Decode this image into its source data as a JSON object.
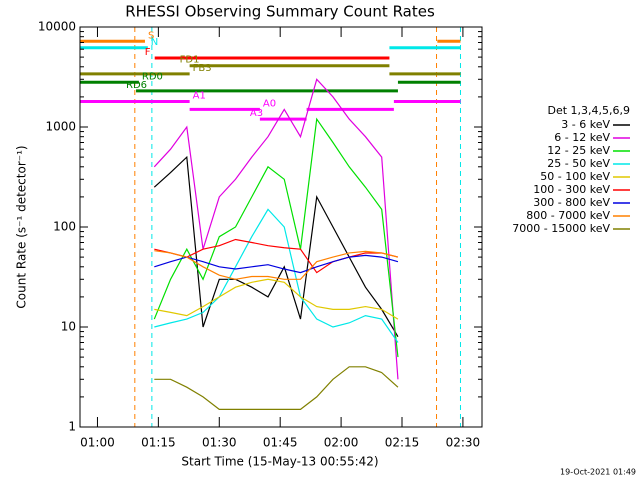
{
  "chart_data": {
    "type": "line",
    "title": "RHESSI Observing Summary Count Rates",
    "x_label": "Start Time (15-May-13 00:55:42)",
    "y_label": "Count Rate (s⁻¹ detector⁻¹)",
    "legend_title": "Det 1,3,4,5,6,9",
    "footer": "19-Oct-2021 01:49",
    "log_y": true,
    "xlim": [
      55.7,
      154.7
    ],
    "ylim": [
      1,
      10000
    ],
    "xticks": [
      {
        "value": 60,
        "label": "01:00"
      },
      {
        "value": 75,
        "label": "01:15"
      },
      {
        "value": 90,
        "label": "01:30"
      },
      {
        "value": 105,
        "label": "01:45"
      },
      {
        "value": 120,
        "label": "02:00"
      },
      {
        "value": 135,
        "label": "02:15"
      },
      {
        "value": 150,
        "label": "02:30"
      }
    ],
    "yticks": [
      1,
      10,
      100,
      1000,
      10000
    ],
    "x": [
      74,
      78,
      82,
      86,
      90,
      94,
      98,
      102,
      106,
      110,
      114,
      118,
      122,
      126,
      130,
      134
    ],
    "series": [
      {
        "name": "3 - 6 keV",
        "color": "#000000",
        "values": [
          250,
          350,
          500,
          10,
          30,
          30,
          25,
          20,
          40,
          12,
          200,
          100,
          50,
          25,
          15,
          8
        ]
      },
      {
        "name": "6 - 12 keV",
        "color": "#e000e0",
        "values": [
          400,
          600,
          1000,
          60,
          200,
          300,
          500,
          800,
          1500,
          800,
          3000,
          2000,
          1200,
          800,
          500,
          3
        ]
      },
      {
        "name": "12 - 25 keV",
        "color": "#00e000",
        "values": [
          12,
          30,
          60,
          30,
          80,
          100,
          200,
          400,
          300,
          60,
          1200,
          700,
          400,
          250,
          150,
          5
        ]
      },
      {
        "name": "25 - 50 keV",
        "color": "#00e8e8",
        "values": [
          10,
          11,
          12,
          14,
          20,
          40,
          80,
          150,
          100,
          20,
          12,
          10,
          11,
          13,
          12,
          7
        ]
      },
      {
        "name": "50 - 100 keV",
        "color": "#e0c800",
        "values": [
          15,
          14,
          13,
          16,
          20,
          25,
          28,
          30,
          28,
          20,
          16,
          15,
          15,
          16,
          15,
          12
        ]
      },
      {
        "name": "100 - 300 keV",
        "color": "#ff0000",
        "values": [
          60,
          55,
          50,
          60,
          65,
          75,
          70,
          65,
          62,
          60,
          35,
          45,
          50,
          55,
          55,
          50
        ]
      },
      {
        "name": "300 - 800 keV",
        "color": "#0000e0",
        "values": [
          40,
          45,
          50,
          45,
          40,
          38,
          40,
          42,
          38,
          35,
          40,
          45,
          50,
          52,
          50,
          45
        ]
      },
      {
        "name": "800 - 7000 keV",
        "color": "#ff8000",
        "values": [
          58,
          55,
          50,
          40,
          33,
          30,
          32,
          32,
          30,
          30,
          45,
          50,
          55,
          57,
          55,
          50
        ]
      },
      {
        "name": "7000 - 15000 keV",
        "color": "#808000",
        "values": [
          3,
          3,
          2.5,
          2,
          1.5,
          1.5,
          1.5,
          1.5,
          1.5,
          1.5,
          2,
          3,
          4,
          4,
          3.5,
          2.5
        ]
      }
    ],
    "flags": [
      {
        "label": "S",
        "color": "#ff8000",
        "level": 7200,
        "segments": [
          [
            55.7,
            71.7
          ],
          [
            143.7,
            149.4
          ]
        ]
      },
      {
        "label": "N",
        "color": "#00e8e8",
        "level": 6200,
        "segments": [
          [
            55.7,
            72.4
          ],
          [
            131.9,
            149.4
          ]
        ]
      },
      {
        "label": "F",
        "color": "#ff0000",
        "level": 4900,
        "segments": [
          [
            74.1,
            131.9
          ]
        ]
      },
      {
        "label": "FD1",
        "color": "#808000",
        "level": 4100,
        "segments": [
          [
            82.7,
            131.9
          ]
        ]
      },
      {
        "label": "FB3",
        "color": "#808000",
        "level": 3400,
        "segments": [
          [
            55.7,
            82.7
          ],
          [
            131.9,
            149.4
          ]
        ]
      },
      {
        "label": "RD0",
        "color": "#008000",
        "level": 2800,
        "segments": [
          [
            55.7,
            70.2
          ],
          [
            134,
            149.4
          ]
        ]
      },
      {
        "label": "RD6",
        "color": "#008000",
        "level": 2300,
        "segments": [
          [
            69.5,
            134
          ]
        ]
      },
      {
        "label": "A1",
        "color": "#ff00ff",
        "level": 1800,
        "segments": [
          [
            55.7,
            82.7
          ],
          [
            133,
            149.4
          ]
        ]
      },
      {
        "label": "A0",
        "color": "#ff00ff",
        "level": 1500,
        "segments": [
          [
            82.7,
            100
          ],
          [
            111.5,
            133
          ]
        ]
      },
      {
        "label": "A3",
        "color": "#ff00ff",
        "level": 1200,
        "segments": [
          [
            100,
            111.5
          ]
        ]
      }
    ],
    "markers": [
      {
        "x": 69.2,
        "color": "#ff8000"
      },
      {
        "x": 73.4,
        "color": "#00e8e8"
      },
      {
        "x": 143.5,
        "color": "#ff8000"
      },
      {
        "x": 149.4,
        "color": "#00e8e8"
      }
    ]
  }
}
